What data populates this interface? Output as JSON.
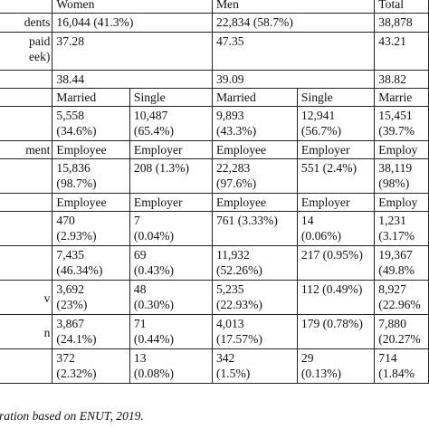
{
  "table": {
    "header": {
      "col0": "",
      "women": "Women",
      "men": "Men",
      "total": "Total"
    },
    "rows": [
      {
        "label": "dents",
        "women": "16,044 (41.3%)",
        "men": "22,834 (58.7%)",
        "total": "38,878"
      },
      {
        "label": "paid\neek)",
        "women": "37.28",
        "men": "47.35",
        "total": "43.21"
      },
      {
        "label": "",
        "women": "38.44",
        "men": "39.09",
        "total": "38.82"
      },
      {
        "label": "",
        "w1": "Married",
        "w2": "Single",
        "m1": "Married",
        "m2": "Single",
        "t": "Marrie"
      },
      {
        "label": "",
        "w1": "5,558\n(34.6%)",
        "w2": "10,487\n(65.4%)",
        "m1": "9,893\n(43.3%)",
        "m2": "12,941\n(56.7%)",
        "t": "15,451\n(39.7%"
      },
      {
        "label": "ment",
        "w1": "Employee",
        "w2": "Employer",
        "m1": "Employee",
        "m2": "Employer",
        "t": "Employ"
      },
      {
        "label": "",
        "w1": "15,836\n(98.7%)",
        "w2": "208 (1.3%)",
        "m1": "22,283\n(97.6%)",
        "m2": "551 (2.4%)",
        "t": "38,119\n(98%)"
      },
      {
        "label": "",
        "w1": "Employee",
        "w2": "Employer",
        "m1": "Employee",
        "m2": "Employer",
        "t": "Employ"
      },
      {
        "label": "",
        "w1": "470\n(2.93%)",
        "w2": "7\n(0.04%)",
        "m1": "761 (3.33%)",
        "m2": "14\n(0.06%)",
        "t": "1,231\n(3.17%"
      },
      {
        "label": "",
        "w1": "7,435\n(46.34%)",
        "w2": "69\n(0.43%)",
        "m1": "11,932\n(52.26%)",
        "m2": "217 (0.95%)",
        "t": "19,367\n(49.8%"
      },
      {
        "label": "v",
        "w1": "3,692\n(23%)",
        "w2": "48\n(0.30%)",
        "m1": "5,235\n(22.93%)",
        "m2": "112 (0.49%)",
        "t": "8,927\n(22.96%"
      },
      {
        "label": "n",
        "w1": "3,867\n(24.1%)",
        "w2": "71\n(0.44%)",
        "m1": "4,013\n(17.57%)",
        "m2": "179 (0.78%)",
        "t": "7,880\n(20.27%"
      },
      {
        "label": "",
        "w1": "372\n(2.32%)",
        "w2": "13\n(0.08%)",
        "m1": "342\n(1.5%)",
        "m2": "29\n(0.13%)",
        "t": "714 (1.84%"
      }
    ]
  },
  "source_note": "ration based on ENUT, 2019."
}
